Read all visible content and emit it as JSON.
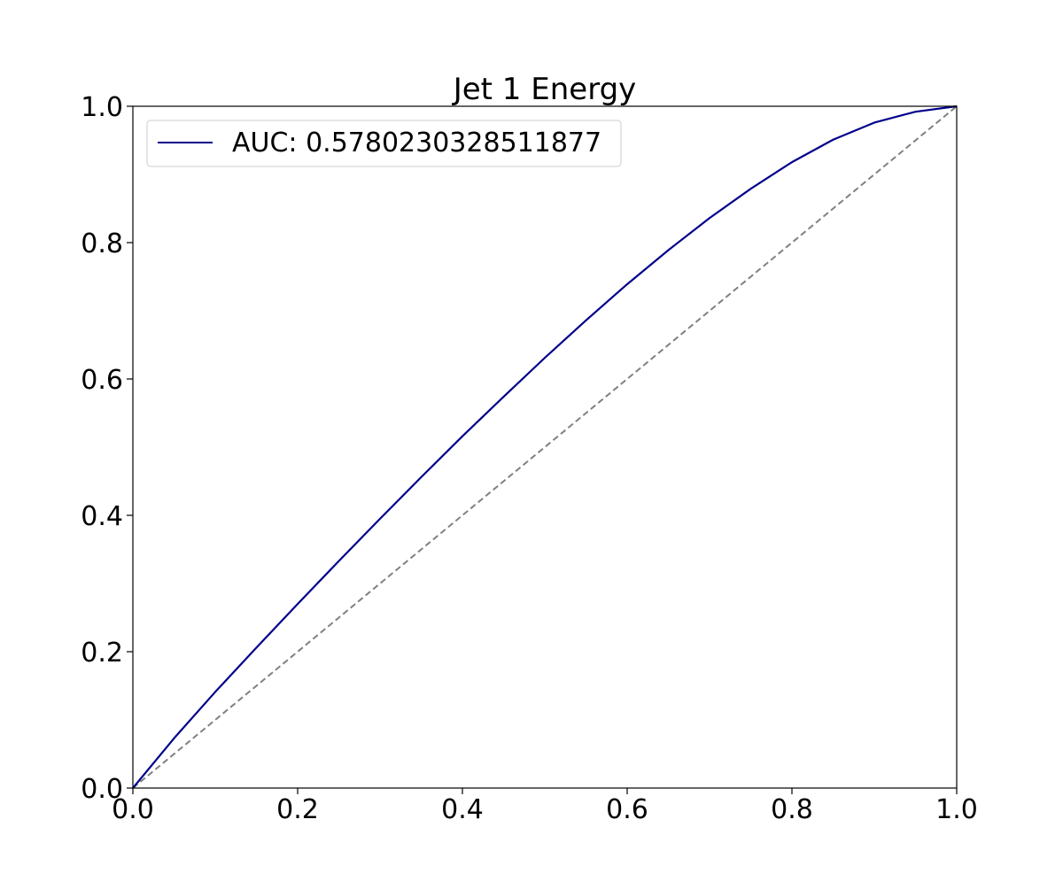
{
  "chart_data": {
    "type": "line",
    "title": "Jet 1 Energy",
    "xlabel": "",
    "ylabel": "",
    "xlim": [
      0.0,
      1.0
    ],
    "ylim": [
      0.0,
      1.0
    ],
    "x_ticks": [
      "0.0",
      "0.2",
      "0.4",
      "0.6",
      "0.8",
      "1.0"
    ],
    "y_ticks": [
      "0.0",
      "0.2",
      "0.4",
      "0.6",
      "0.8",
      "1.0"
    ],
    "grid": false,
    "legend_position": "upper-left",
    "series": [
      {
        "name": "AUC: 0.5780230328511877",
        "color": "#00008b",
        "x": [
          0.0,
          0.05,
          0.1,
          0.15,
          0.2,
          0.25,
          0.3,
          0.35,
          0.4,
          0.45,
          0.5,
          0.55,
          0.6,
          0.65,
          0.7,
          0.75,
          0.8,
          0.85,
          0.9,
          0.95,
          1.0
        ],
        "y": [
          0.0,
          0.073,
          0.141,
          0.206,
          0.27,
          0.333,
          0.395,
          0.456,
          0.516,
          0.574,
          0.631,
          0.686,
          0.739,
          0.789,
          0.836,
          0.879,
          0.918,
          0.951,
          0.976,
          0.992,
          1.0
        ]
      }
    ],
    "reference_line": {
      "color": "#808080",
      "style": "dashed",
      "x": [
        0.0,
        1.0
      ],
      "y": [
        0.0,
        1.0
      ]
    }
  }
}
